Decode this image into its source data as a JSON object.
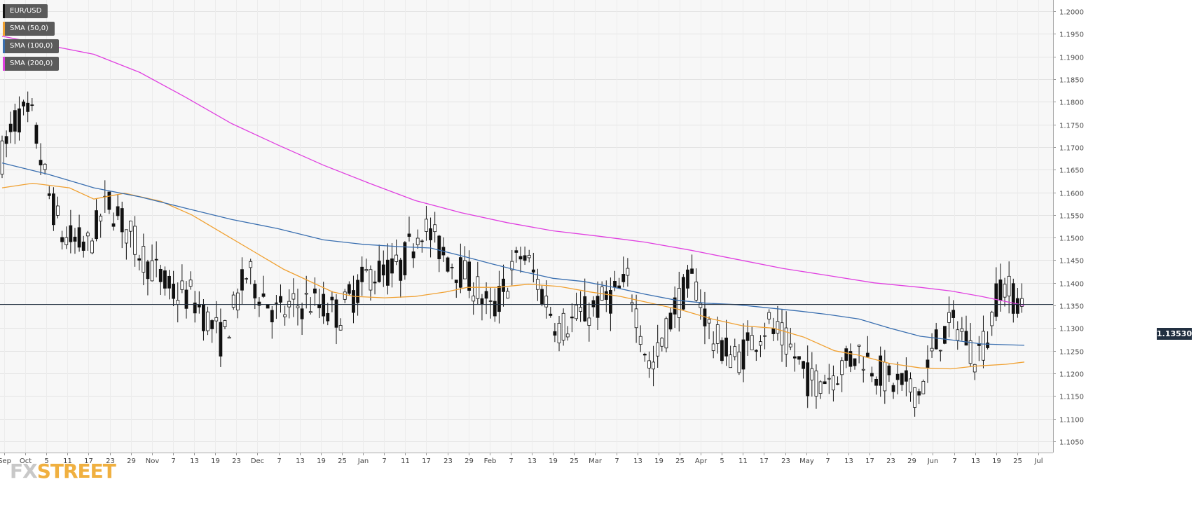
{
  "chart_data": {
    "type": "candlestick",
    "symbol": "EUR/USD",
    "ylim": [
      1.1025,
      1.2025
    ],
    "y_ticks": [
      "1.2000",
      "1.1950",
      "1.1900",
      "1.1850",
      "1.1800",
      "1.1750",
      "1.1700",
      "1.1650",
      "1.1600",
      "1.1550",
      "1.1500",
      "1.1450",
      "1.1400",
      "1.1350",
      "1.1300",
      "1.1250",
      "1.1200",
      "1.1150",
      "1.1100",
      "1.1050"
    ],
    "x_ticks": [
      "Sep",
      "Oct",
      "5",
      "11",
      "17",
      "23",
      "29",
      "Nov",
      "7",
      "13",
      "19",
      "23",
      "Dec",
      "7",
      "13",
      "19",
      "25",
      "Jan",
      "7",
      "11",
      "17",
      "23",
      "29",
      "Feb",
      "7",
      "13",
      "19",
      "25",
      "Mar",
      "7",
      "13",
      "19",
      "25",
      "Apr",
      "5",
      "11",
      "17",
      "23",
      "May",
      "7",
      "13",
      "17",
      "23",
      "29",
      "Jun",
      "7",
      "13",
      "19",
      "25",
      "Jul"
    ],
    "grid": true,
    "current_price": 1.1353,
    "current_price_label": "1.13530",
    "series": [
      {
        "name": "SMA (50,0)",
        "color": "#f0a030",
        "values": [
          [
            0,
            1.161
          ],
          [
            10,
            1.162
          ],
          [
            22,
            1.161
          ],
          [
            30,
            1.1585
          ],
          [
            40,
            1.1598
          ],
          [
            52,
            1.158
          ],
          [
            62,
            1.155
          ],
          [
            72,
            1.151
          ],
          [
            82,
            1.147
          ],
          [
            92,
            1.143
          ],
          [
            100,
            1.1405
          ],
          [
            108,
            1.138
          ],
          [
            115,
            1.137
          ],
          [
            125,
            1.1367
          ],
          [
            135,
            1.137
          ],
          [
            145,
            1.138
          ],
          [
            152,
            1.139
          ],
          [
            162,
            1.139
          ],
          [
            172,
            1.1397
          ],
          [
            182,
            1.1392
          ],
          [
            192,
            1.138
          ],
          [
            202,
            1.137
          ],
          [
            212,
            1.1355
          ],
          [
            222,
            1.134
          ],
          [
            232,
            1.132
          ],
          [
            242,
            1.1305
          ],
          [
            252,
            1.13
          ],
          [
            262,
            1.128
          ],
          [
            272,
            1.125
          ],
          [
            280,
            1.124
          ],
          [
            290,
            1.1222
          ],
          [
            300,
            1.1212
          ],
          [
            310,
            1.121
          ],
          [
            318,
            1.1216
          ],
          [
            328,
            1.122
          ],
          [
            334,
            1.1225
          ]
        ]
      },
      {
        "name": "SMA (100,0)",
        "color": "#3a6fb0",
        "values": [
          [
            0,
            1.1665
          ],
          [
            15,
            1.164
          ],
          [
            30,
            1.161
          ],
          [
            45,
            1.159
          ],
          [
            60,
            1.1565
          ],
          [
            75,
            1.154
          ],
          [
            90,
            1.152
          ],
          [
            105,
            1.1495
          ],
          [
            118,
            1.1485
          ],
          [
            130,
            1.148
          ],
          [
            140,
            1.1477
          ],
          [
            150,
            1.146
          ],
          [
            160,
            1.1442
          ],
          [
            170,
            1.1425
          ],
          [
            180,
            1.141
          ],
          [
            190,
            1.1403
          ],
          [
            200,
            1.139
          ],
          [
            210,
            1.1375
          ],
          [
            220,
            1.1362
          ],
          [
            230,
            1.1355
          ],
          [
            240,
            1.1352
          ],
          [
            250,
            1.1345
          ],
          [
            260,
            1.1338
          ],
          [
            270,
            1.133
          ],
          [
            280,
            1.132
          ],
          [
            290,
            1.13
          ],
          [
            300,
            1.1282
          ],
          [
            310,
            1.1274
          ],
          [
            320,
            1.1265
          ],
          [
            334,
            1.1262
          ]
        ]
      },
      {
        "name": "SMA (200,0)",
        "color": "#e040e0",
        "values": [
          [
            0,
            1.1945
          ],
          [
            15,
            1.1925
          ],
          [
            30,
            1.1905
          ],
          [
            45,
            1.1865
          ],
          [
            60,
            1.181
          ],
          [
            75,
            1.1752
          ],
          [
            90,
            1.1705
          ],
          [
            105,
            1.166
          ],
          [
            120,
            1.162
          ],
          [
            135,
            1.1582
          ],
          [
            150,
            1.1555
          ],
          [
            165,
            1.1533
          ],
          [
            180,
            1.1515
          ],
          [
            195,
            1.1503
          ],
          [
            210,
            1.149
          ],
          [
            225,
            1.1472
          ],
          [
            240,
            1.1452
          ],
          [
            255,
            1.1432
          ],
          [
            270,
            1.1416
          ],
          [
            285,
            1.14
          ],
          [
            300,
            1.139
          ],
          [
            310,
            1.1382
          ],
          [
            320,
            1.137
          ],
          [
            334,
            1.135
          ]
        ]
      }
    ]
  },
  "legend": [
    {
      "label": "EUR/USD",
      "color": "#111111"
    },
    {
      "label": "SMA (50,0)",
      "color": "#f0a030"
    },
    {
      "label": "SMA (100,0)",
      "color": "#3a6fb0"
    },
    {
      "label": "SMA (200,0)",
      "color": "#e040e0"
    }
  ],
  "logo": {
    "part1": "FX",
    "part2": "STREET"
  }
}
